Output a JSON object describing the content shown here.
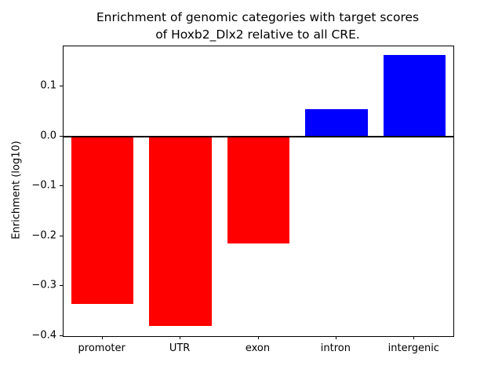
{
  "title": {
    "lines": [
      "Enrichment of genomic categories with target scores",
      "of Hoxb2_Dlx2 relative to all CRE."
    ]
  },
  "chart_data": {
    "type": "bar",
    "title": "Enrichment of genomic categories with target scores of Hoxb2_Dlx2 relative to all CRE.",
    "categories": [
      "promoter",
      "UTR",
      "exon",
      "intron",
      "intergenic"
    ],
    "values": [
      -0.335,
      -0.38,
      -0.215,
      0.054,
      0.163
    ],
    "series": [
      {
        "name": "enrichment",
        "values": [
          -0.335,
          -0.38,
          -0.215,
          0.054,
          0.163
        ]
      }
    ],
    "xlabel": "",
    "ylabel": "Enrichment (log10)",
    "ylim": [
      -0.4,
      0.18
    ],
    "yticks": [
      0.1,
      0.0,
      -0.1,
      -0.2,
      -0.3,
      -0.4
    ],
    "ytick_labels": [
      "0.1",
      "0.0",
      "−0.1",
      "−0.2",
      "−0.3",
      "−0.4"
    ],
    "bar_colors": {
      "positive": "#0000ff",
      "negative": "#ff0000"
    },
    "zero_line": true,
    "zero_line_color": "#000000",
    "grid": false,
    "legend": null,
    "background": "#ffffff"
  }
}
